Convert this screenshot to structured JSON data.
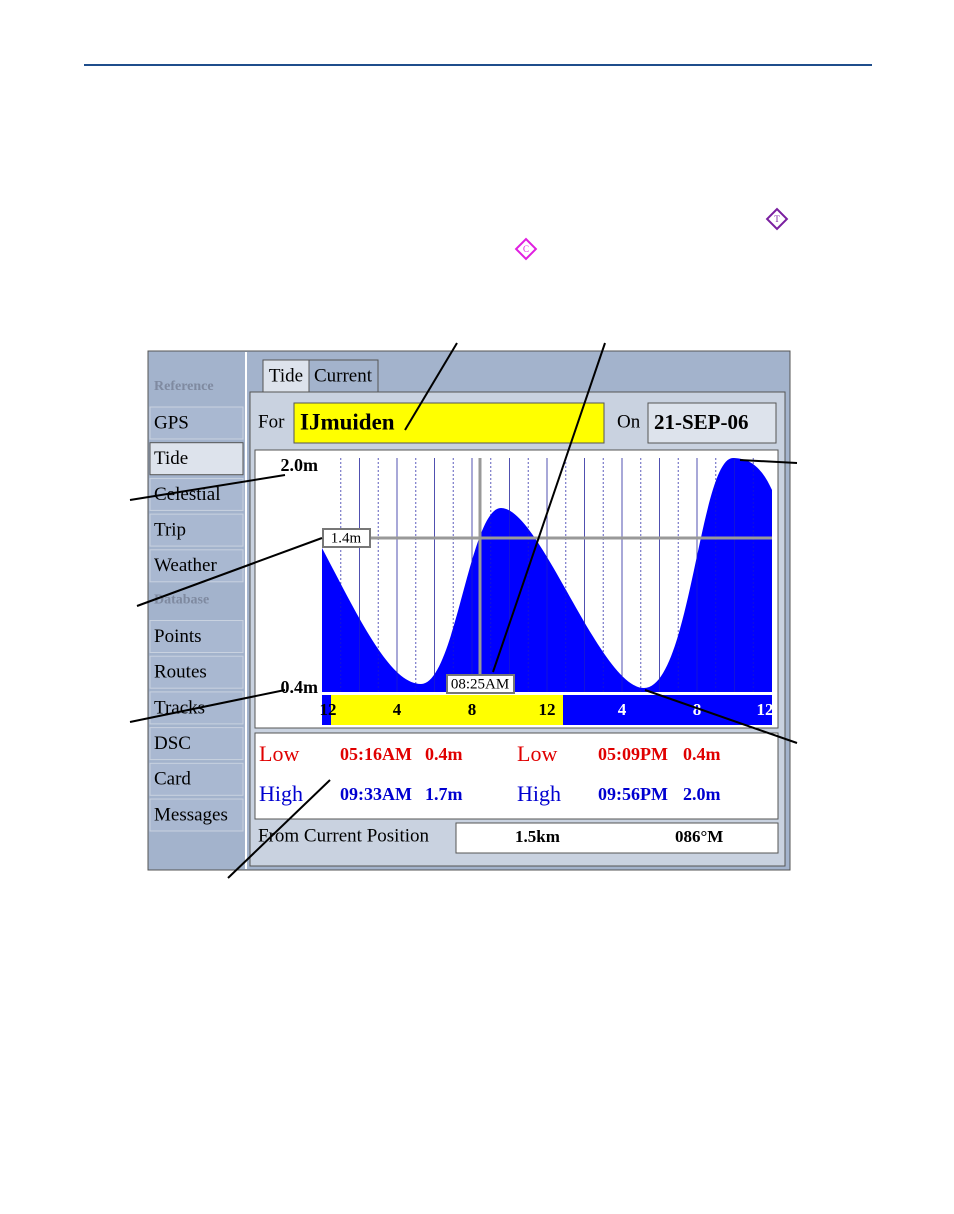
{
  "icons": {
    "tide": "T",
    "current": "C"
  },
  "menu": {
    "reference_header": "Reference",
    "reference_items": [
      "GPS",
      "Tide",
      "Celestial",
      "Trip",
      "Weather"
    ],
    "database_header": "Database",
    "database_items": [
      "Points",
      "Routes",
      "Tracks",
      "DSC",
      "Card",
      "Messages"
    ]
  },
  "tabs": [
    "Tide",
    "Current"
  ],
  "location": {
    "label": "For",
    "value": "IJmuiden",
    "date_label": "On",
    "date": "21-SEP-06"
  },
  "graph": {
    "y_top": "2.0m",
    "y_cursor": "1.4m",
    "y_bottom": "0.4m",
    "cursor_time": "08:25AM",
    "time_labels": [
      "12",
      "4",
      "8",
      "12",
      "4",
      "8",
      "12"
    ]
  },
  "tides": [
    {
      "type": "Low",
      "time": "05:16AM",
      "height": "0.4m"
    },
    {
      "type": "Low",
      "time": "05:09PM",
      "height": "0.4m"
    },
    {
      "type": "High",
      "time": "09:33AM",
      "height": "1.7m"
    },
    {
      "type": "High",
      "time": "09:56PM",
      "height": "2.0m"
    }
  ],
  "position": {
    "label": "From Current Position",
    "distance": "1.5km",
    "bearing": "086°M"
  }
}
